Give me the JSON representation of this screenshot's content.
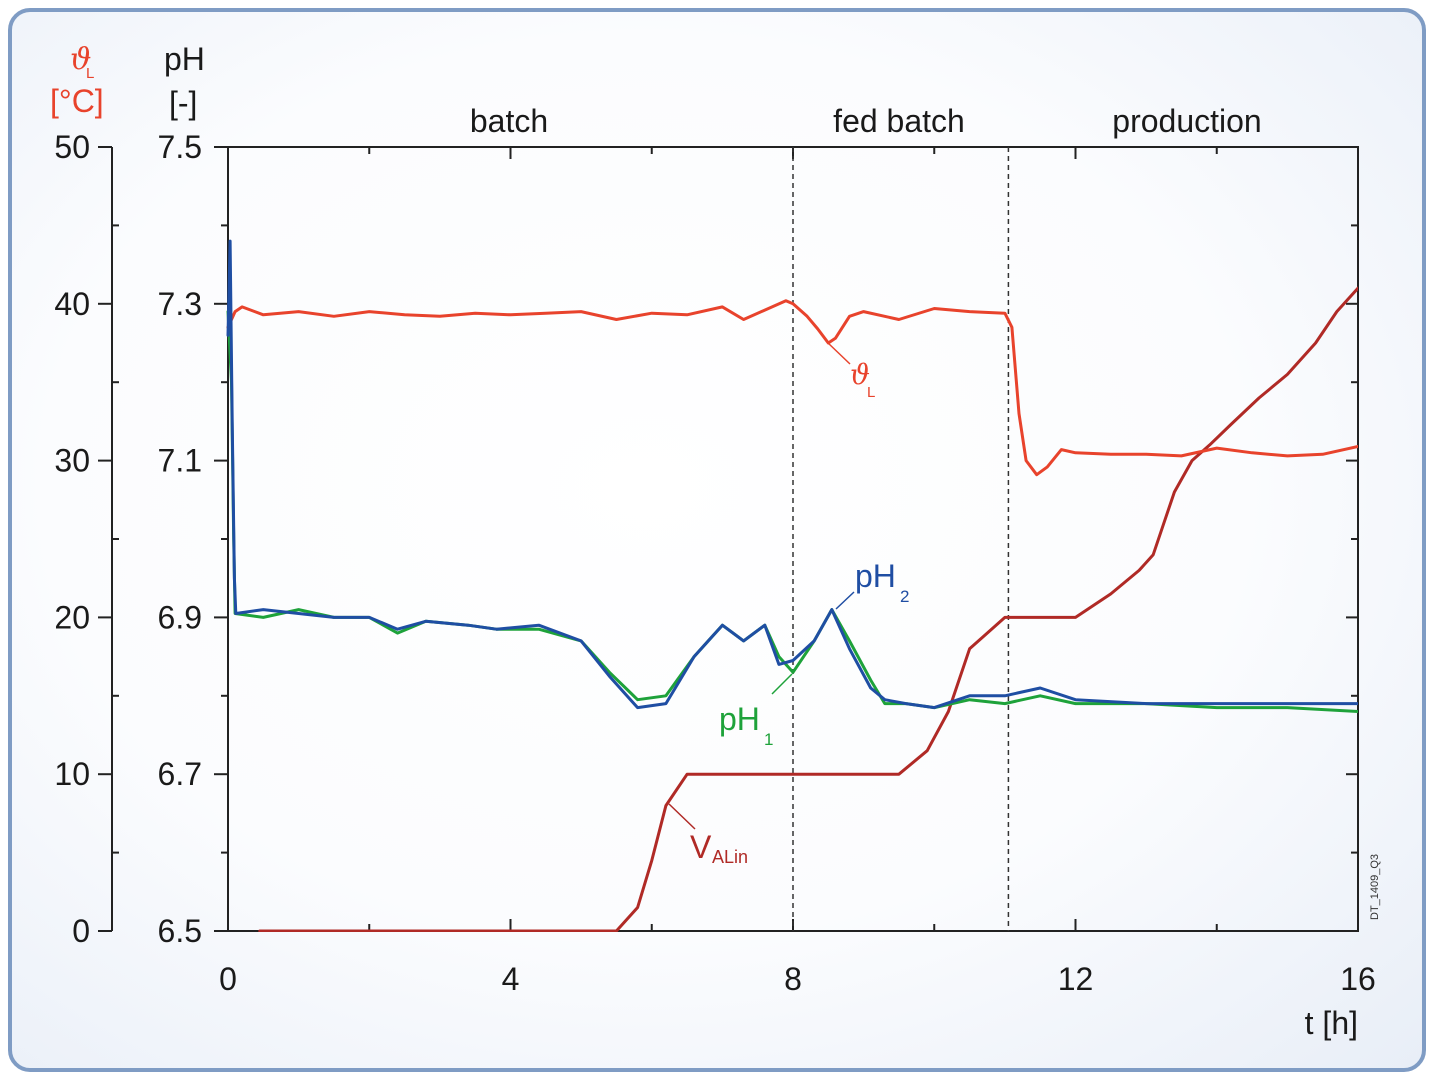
{
  "chart_data": {
    "type": "line",
    "xlabel": "t [h]",
    "xlim": [
      0,
      16
    ],
    "x_ticks": [
      "0",
      "4",
      "8",
      "12",
      "16"
    ],
    "y_left_outer": {
      "symbol": "ϑ",
      "subscript": "L",
      "unit": "[°C]",
      "ylim": [
        0,
        50
      ],
      "ticks": [
        "0",
        "10",
        "20",
        "30",
        "40",
        "50"
      ],
      "color": "#e8432c"
    },
    "y_left_inner": {
      "label": "pH",
      "unit": "[-]",
      "ylim": [
        6.5,
        7.5
      ],
      "ticks": [
        "6.5",
        "6.7",
        "6.9",
        "7.1",
        "7.3",
        "7.5"
      ]
    },
    "phases": [
      {
        "label": "batch",
        "start": 0,
        "end": 8
      },
      {
        "label": "fed batch",
        "start": 8,
        "end": 11.05
      },
      {
        "label": "production",
        "start": 11.05,
        "end": 16
      }
    ],
    "phase_boundaries": [
      8,
      11.05
    ],
    "grid": false,
    "series": [
      {
        "name": "ϑ",
        "sub": "L",
        "axis": "temperature",
        "color": "#e8432c",
        "x": [
          0,
          0.1,
          0.2,
          0.5,
          1.0,
          1.5,
          2.0,
          2.5,
          3.0,
          3.5,
          4.0,
          4.5,
          5.0,
          5.5,
          6.0,
          6.5,
          7.0,
          7.3,
          7.6,
          7.9,
          8.0,
          8.2,
          8.35,
          8.5,
          8.6,
          8.8,
          9.0,
          9.5,
          10.0,
          10.5,
          11.0,
          11.1,
          11.2,
          11.3,
          11.45,
          11.6,
          11.8,
          12.0,
          12.5,
          13.0,
          13.5,
          14.0,
          14.5,
          15.0,
          15.5,
          16.0
        ],
        "y": [
          38.5,
          39.5,
          39.8,
          39.3,
          39.5,
          39.2,
          39.5,
          39.3,
          39.2,
          39.4,
          39.3,
          39.4,
          39.5,
          39.0,
          39.4,
          39.3,
          39.8,
          39.0,
          39.6,
          40.2,
          40.0,
          39.2,
          38.4,
          37.5,
          37.8,
          39.2,
          39.5,
          39.0,
          39.7,
          39.5,
          39.4,
          38.5,
          33.0,
          30.0,
          29.1,
          29.6,
          30.7,
          30.5,
          30.4,
          30.4,
          30.3,
          30.8,
          30.5,
          30.3,
          30.4,
          30.9
        ]
      },
      {
        "name": "V",
        "sub": "ALin",
        "axis": "temperature",
        "color": "#b02a26",
        "x": [
          0.45,
          5.5,
          5.8,
          6.0,
          6.2,
          6.5,
          9.5,
          9.9,
          10.2,
          10.5,
          11.0,
          11.5,
          12.0,
          12.5,
          12.9,
          13.1,
          13.25,
          13.4,
          13.65,
          13.9,
          14.2,
          14.6,
          15.0,
          15.4,
          15.7,
          16.0
        ],
        "y": [
          0,
          0,
          1.5,
          4.5,
          8.0,
          10.0,
          10.0,
          11.5,
          14.0,
          18.0,
          20.0,
          20.0,
          20.0,
          21.5,
          23.0,
          24.0,
          26.0,
          28.0,
          30.0,
          31.0,
          32.3,
          34.0,
          35.5,
          37.5,
          39.5,
          41.0
        ]
      },
      {
        "name": "pH",
        "sub": "1",
        "axis": "pH",
        "color": "#1ea23a",
        "x": [
          0,
          0.05,
          0.08,
          0.1,
          0.5,
          1.0,
          1.5,
          2.0,
          2.4,
          2.8,
          3.4,
          3.8,
          4.4,
          5.0,
          5.4,
          5.8,
          6.2,
          6.6,
          7.0,
          7.3,
          7.6,
          7.8,
          8.0,
          8.3,
          8.55,
          8.8,
          9.1,
          9.3,
          9.6,
          10.0,
          10.5,
          11.0,
          11.5,
          12.0,
          13.0,
          14.0,
          15.0,
          16.0
        ],
        "y": [
          7.29,
          7.2,
          7.0,
          6.905,
          6.9,
          6.91,
          6.9,
          6.9,
          6.88,
          6.895,
          6.89,
          6.885,
          6.885,
          6.87,
          6.83,
          6.795,
          6.8,
          6.85,
          6.89,
          6.87,
          6.89,
          6.85,
          6.83,
          6.87,
          6.91,
          6.87,
          6.82,
          6.79,
          6.79,
          6.785,
          6.795,
          6.79,
          6.8,
          6.79,
          6.79,
          6.785,
          6.785,
          6.78
        ]
      },
      {
        "name": "pH",
        "sub": "2",
        "axis": "pH",
        "color": "#1f4ea3",
        "x": [
          0,
          0.03,
          0.06,
          0.09,
          0.11,
          0.5,
          1.0,
          1.5,
          2.0,
          2.4,
          2.8,
          3.4,
          3.8,
          4.4,
          5.0,
          5.4,
          5.8,
          6.2,
          6.6,
          7.0,
          7.3,
          7.6,
          7.8,
          8.0,
          8.3,
          8.55,
          8.8,
          9.1,
          9.3,
          9.6,
          10.0,
          10.5,
          11.0,
          11.5,
          12.0,
          13.0,
          14.0,
          15.0,
          16.0
        ],
        "y": [
          7.26,
          7.38,
          7.15,
          6.95,
          6.905,
          6.91,
          6.905,
          6.9,
          6.9,
          6.885,
          6.895,
          6.89,
          6.885,
          6.89,
          6.87,
          6.825,
          6.785,
          6.79,
          6.85,
          6.89,
          6.87,
          6.89,
          6.84,
          6.845,
          6.87,
          6.91,
          6.86,
          6.81,
          6.795,
          6.79,
          6.785,
          6.8,
          6.8,
          6.81,
          6.795,
          6.79,
          6.79,
          6.79,
          6.79
        ]
      }
    ]
  },
  "footnote": "DT_1409_Q3"
}
